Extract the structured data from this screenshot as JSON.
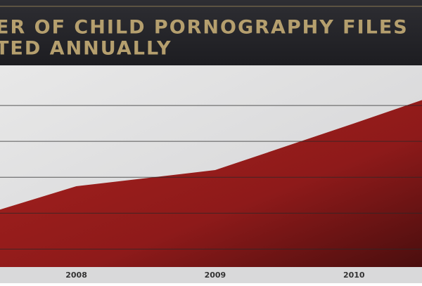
{
  "chart_data": {
    "type": "area",
    "title_lines": [
      "ER OF CHILD PORNOGRAPHY FILES",
      "TED ANNUALLY"
    ],
    "x": [
      2007.45,
      2008,
      2009,
      2010,
      2010.49
    ],
    "values": [
      2.1,
      2.75,
      3.2,
      4.5,
      5.15
    ],
    "color": "#9b1d1d",
    "xlim": [
      2007.45,
      2010.49
    ],
    "xticks": [
      2008,
      2009,
      2010
    ],
    "ylim": [
      0.5,
      6
    ],
    "yticks": [
      1,
      2,
      3,
      4,
      5
    ],
    "grid": true
  }
}
